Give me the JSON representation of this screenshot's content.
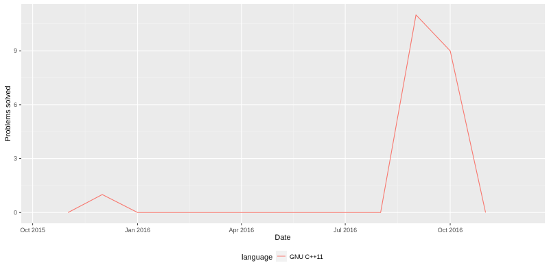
{
  "chart_data": {
    "type": "line",
    "xlabel": "Date",
    "ylabel": "Problems solved",
    "x_ticks": [
      {
        "date": "2015-10-01",
        "label": "Oct 2015"
      },
      {
        "date": "2016-01-01",
        "label": "Jan 2016"
      },
      {
        "date": "2016-04-01",
        "label": "Apr 2016"
      },
      {
        "date": "2016-07-01",
        "label": "Jul 2016"
      },
      {
        "date": "2016-10-01",
        "label": "Oct 2016"
      }
    ],
    "y_ticks": [
      0,
      3,
      6,
      9
    ],
    "xlim": [
      "2015-09-21",
      "2016-12-23"
    ],
    "ylim": [
      -0.6,
      11.6
    ],
    "grid": true,
    "legend": {
      "title": "language",
      "position": "bottom"
    },
    "series": [
      {
        "name": "GNU C++11",
        "color": "#f8766d",
        "x": [
          "2015-11-01",
          "2015-12-01",
          "2016-01-01",
          "2016-02-01",
          "2016-03-01",
          "2016-04-01",
          "2016-05-01",
          "2016-06-01",
          "2016-07-01",
          "2016-08-01",
          "2016-09-01",
          "2016-10-01",
          "2016-11-01"
        ],
        "y": [
          0,
          1,
          0,
          0,
          0,
          0,
          0,
          0,
          0,
          0,
          11,
          9,
          0
        ]
      }
    ]
  }
}
